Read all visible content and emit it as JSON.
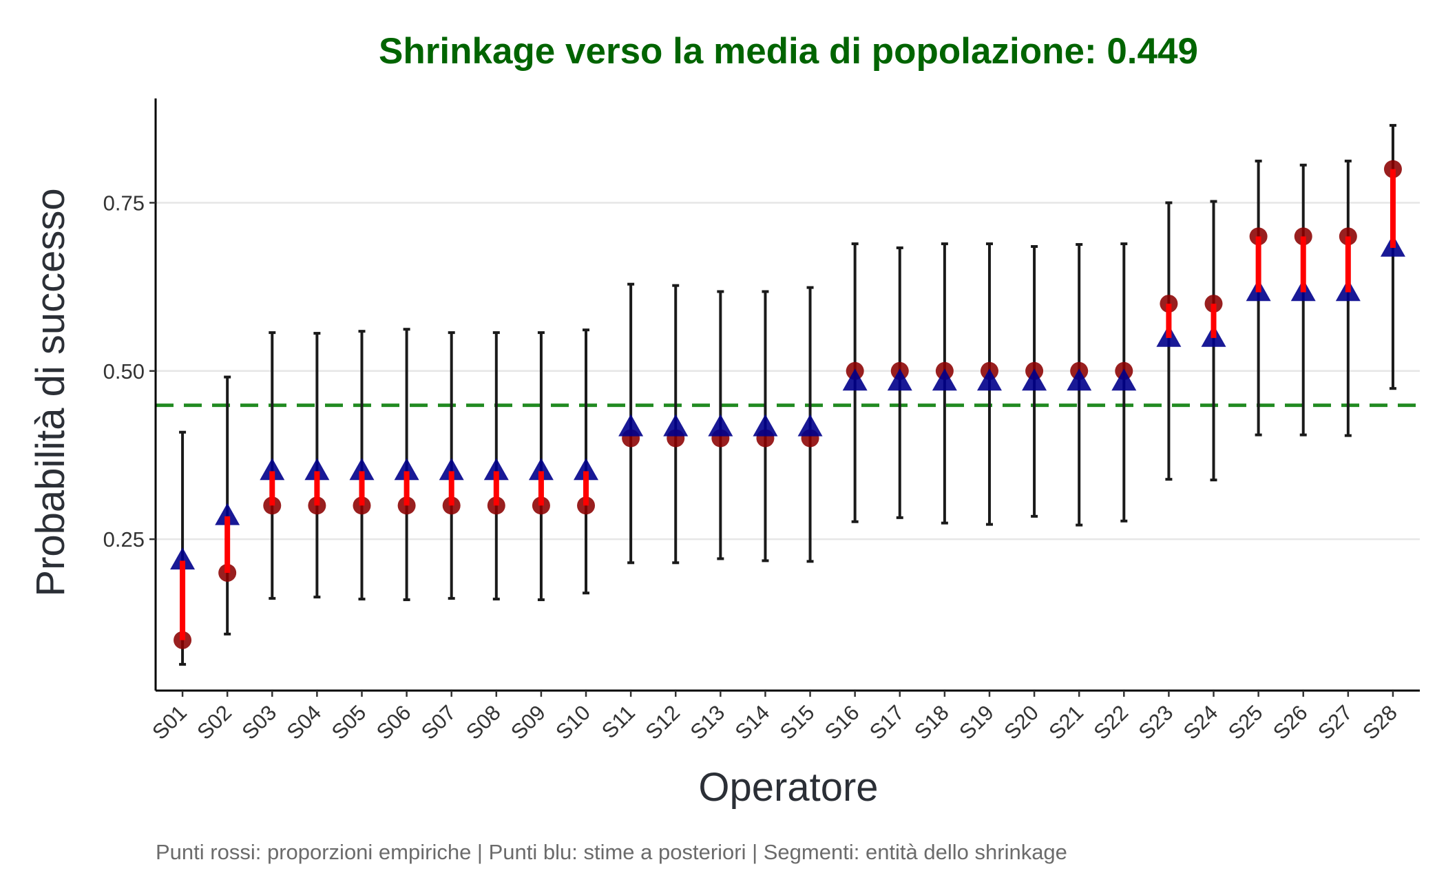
{
  "chart_data": {
    "type": "scatter",
    "title": "Shrinkage verso la media di popolazione: 0.449",
    "xlabel": "Operatore",
    "ylabel": "Probabilità di successo",
    "caption": "Punti rossi: proporzioni empiriche | Punti blu: stime a posteriori | Segmenti: entità dello shrinkage",
    "categories": [
      "S01",
      "S02",
      "S03",
      "S04",
      "S05",
      "S06",
      "S07",
      "S08",
      "S09",
      "S10",
      "S11",
      "S12",
      "S13",
      "S14",
      "S15",
      "S16",
      "S17",
      "S18",
      "S19",
      "S20",
      "S21",
      "S22",
      "S23",
      "S24",
      "S25",
      "S26",
      "S27",
      "S28"
    ],
    "yticks": [
      0.25,
      0.5,
      0.75
    ],
    "ytick_labels": [
      "0.25",
      "0.50",
      "0.75"
    ],
    "ylim": [
      0.025,
      0.905
    ],
    "grid": "horizontal major",
    "reference_line": {
      "value": 0.449,
      "style": "dashed"
    },
    "series": [
      {
        "type": "point",
        "values": [
          0.1,
          0.2,
          0.3,
          0.3,
          0.3,
          0.3,
          0.3,
          0.3,
          0.3,
          0.3,
          0.4,
          0.4,
          0.4,
          0.4,
          0.4,
          0.5,
          0.5,
          0.5,
          0.5,
          0.5,
          0.5,
          0.5,
          0.6,
          0.6,
          0.7,
          0.7,
          0.7,
          0.8
        ]
      },
      {
        "type": "point",
        "values": [
          0.218,
          0.284,
          0.351,
          0.351,
          0.351,
          0.351,
          0.351,
          0.351,
          0.351,
          0.351,
          0.416,
          0.416,
          0.416,
          0.416,
          0.416,
          0.484,
          0.484,
          0.484,
          0.484,
          0.484,
          0.484,
          0.484,
          0.549,
          0.549,
          0.617,
          0.617,
          0.617,
          0.683
        ]
      },
      {
        "type": "errorbar",
        "lower": [
          0.064,
          0.109,
          0.162,
          0.164,
          0.161,
          0.16,
          0.162,
          0.161,
          0.16,
          0.17,
          0.215,
          0.215,
          0.221,
          0.218,
          0.217,
          0.276,
          0.282,
          0.274,
          0.272,
          0.284,
          0.271,
          0.277,
          0.339,
          0.338,
          0.405,
          0.405,
          0.404,
          0.474
        ],
        "upper": [
          0.409,
          0.491,
          0.557,
          0.556,
          0.559,
          0.562,
          0.557,
          0.557,
          0.557,
          0.561,
          0.629,
          0.627,
          0.618,
          0.618,
          0.624,
          0.689,
          0.683,
          0.689,
          0.689,
          0.685,
          0.688,
          0.689,
          0.75,
          0.752,
          0.812,
          0.806,
          0.812,
          0.865
        ]
      }
    ],
    "colors": {
      "title": "#006400",
      "empirical_point": "#8b0000",
      "posterior_point": "#00008b",
      "shrink_segment": "#ff0000",
      "errorbar": "#1a1a1a",
      "reference_line": "#228b22",
      "grid": "#e6e6e6",
      "axis": "#000000"
    }
  }
}
